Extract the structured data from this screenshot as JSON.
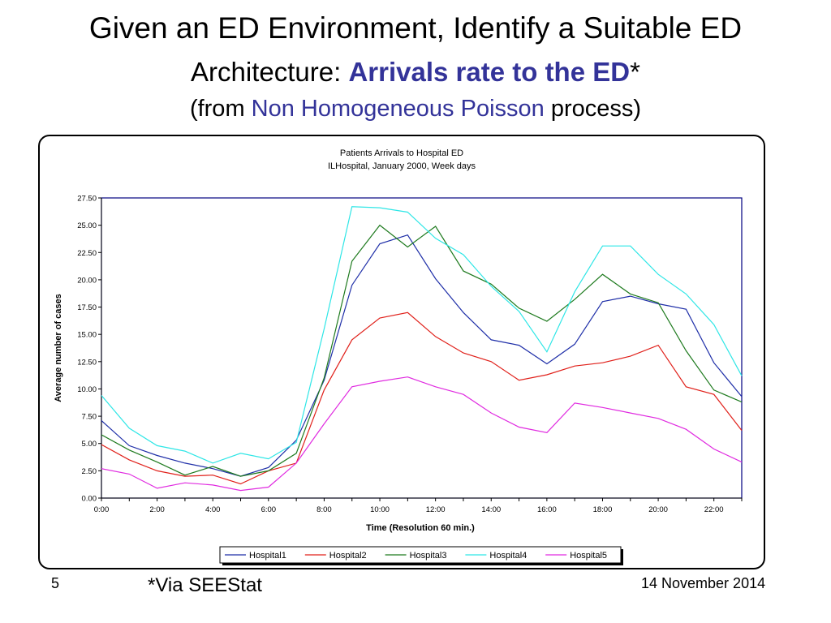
{
  "slide": {
    "title_line1": "Given an ED Environment, Identify a Suitable ED",
    "title_line2_prefix": "Architecture: ",
    "title_line2_highlight": "Arrivals rate to the ED",
    "title_line2_suffix": "*",
    "title_line3_prefix": "(from ",
    "title_line3_highlight": "Non Homogeneous Poisson",
    "title_line3_suffix": " process)",
    "page_number": "5",
    "footnote": "*Via SEEStat",
    "date": "14 November 2014"
  },
  "colors": {
    "highlight": "#333399",
    "plot_frame": "#000080"
  },
  "chart_data": {
    "type": "line",
    "title": "Patients Arrivals to Hospital ED",
    "subtitle": "ILHospital, January 2000, Week days",
    "xlabel": "Time (Resolution 60 min.)",
    "ylabel": "Average number of cases",
    "ylim": [
      0,
      27.5
    ],
    "xlim": [
      0,
      23
    ],
    "grid": false,
    "legend_position": "bottom",
    "x_tick_labels": [
      "0:00",
      "2:00",
      "4:00",
      "6:00",
      "8:00",
      "10:00",
      "12:00",
      "14:00",
      "16:00",
      "18:00",
      "20:00",
      "22:00"
    ],
    "y_tick_labels": [
      "0.00",
      "2.50",
      "5.00",
      "7.50",
      "10.00",
      "12.50",
      "15.00",
      "17.50",
      "20.00",
      "22.50",
      "25.00",
      "27.50"
    ],
    "x": [
      0,
      1,
      2,
      3,
      4,
      5,
      6,
      7,
      8,
      9,
      10,
      11,
      12,
      13,
      14,
      15,
      16,
      17,
      18,
      19,
      20,
      21,
      22,
      23
    ],
    "series": [
      {
        "name": "Hospital1",
        "color": "#1F2FA8",
        "values": [
          7.1,
          4.8,
          3.9,
          3.2,
          2.7,
          2.0,
          2.8,
          5.3,
          10.8,
          19.5,
          23.3,
          24.1,
          20.1,
          17.0,
          14.5,
          14.0,
          12.3,
          14.1,
          18.0,
          18.5,
          17.8,
          17.3,
          12.4,
          9.3
        ]
      },
      {
        "name": "Hospital2",
        "color": "#E0201A",
        "values": [
          4.9,
          3.5,
          2.5,
          2.0,
          2.1,
          1.3,
          2.5,
          3.2,
          9.9,
          14.5,
          16.5,
          17.0,
          14.8,
          13.3,
          12.5,
          10.8,
          11.3,
          12.1,
          12.4,
          13.0,
          14.0,
          10.2,
          9.5,
          6.2
        ]
      },
      {
        "name": "Hospital3",
        "color": "#1E7A1E",
        "values": [
          5.8,
          4.4,
          3.3,
          2.1,
          2.9,
          2.0,
          2.5,
          4.1,
          11.0,
          21.7,
          25.0,
          23.0,
          24.9,
          20.8,
          19.6,
          17.4,
          16.2,
          18.2,
          20.5,
          18.7,
          17.9,
          13.5,
          9.9,
          8.8
        ]
      },
      {
        "name": "Hospital4",
        "color": "#2EE6E6",
        "values": [
          9.4,
          6.4,
          4.8,
          4.3,
          3.2,
          4.1,
          3.6,
          5.1,
          15.5,
          26.7,
          26.6,
          26.2,
          23.8,
          22.3,
          19.4,
          17.1,
          13.4,
          18.9,
          23.1,
          23.1,
          20.5,
          18.7,
          15.9,
          11.2
        ]
      },
      {
        "name": "Hospital5",
        "color": "#E02BE0",
        "values": [
          2.7,
          2.2,
          0.9,
          1.4,
          1.2,
          0.7,
          1.0,
          3.2,
          6.8,
          10.2,
          10.7,
          11.1,
          10.2,
          9.5,
          7.8,
          6.5,
          6.0,
          8.7,
          8.3,
          7.8,
          7.3,
          6.3,
          4.5,
          3.3
        ]
      }
    ]
  }
}
